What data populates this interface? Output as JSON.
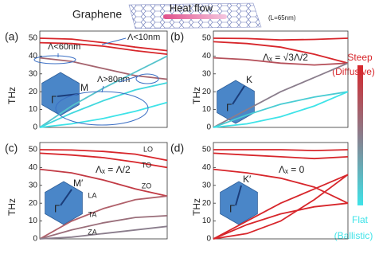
{
  "header": {
    "material": "Graphene",
    "flow": "Heat flow",
    "length": "(L=65nm)"
  },
  "colorbar": {
    "top": "Steep",
    "top_note": "(Diffusive)",
    "bottom": "Flat",
    "bottom_note": "(Ballistic)",
    "colors": [
      "#d7262b",
      "#8a7d8c",
      "#3ee3e8"
    ]
  },
  "chart_data": [
    {
      "type": "line",
      "panel": "(a)",
      "ylabel": "THz",
      "xlim": [
        0,
        1
      ],
      "ylim": [
        0,
        54
      ],
      "yticks": [
        0,
        10,
        20,
        30,
        40,
        50
      ],
      "x": [
        0,
        0.25,
        0.5,
        0.75,
        1
      ],
      "inset": {
        "start": "Γ",
        "end": "M"
      },
      "annotations": [
        "Λ<60nm",
        "Λ<10nm",
        "Λ>80nm"
      ],
      "series": [
        {
          "color": "#d7262b",
          "values": [
            50,
            49.5,
            47.5,
            45,
            43
          ]
        },
        {
          "color": "#d7262b",
          "values": [
            47.5,
            47,
            45.5,
            43,
            41
          ]
        },
        {
          "color": "#a5646e",
          "values": [
            39,
            37,
            33,
            29,
            27
          ]
        },
        {
          "color": "#55c3cc",
          "values": [
            0,
            12,
            22,
            31,
            40
          ]
        },
        {
          "color": "#42d8de",
          "values": [
            0,
            8,
            15,
            21,
            25
          ]
        },
        {
          "color": "#3ee3e8",
          "values": [
            0,
            2,
            5,
            9,
            14
          ]
        }
      ]
    },
    {
      "type": "line",
      "panel": "(b)",
      "ylabel": "THz",
      "xlim": [
        0,
        1
      ],
      "ylim": [
        0,
        54
      ],
      "yticks": [
        0,
        10,
        20,
        30,
        40,
        50
      ],
      "x": [
        0,
        0.25,
        0.5,
        0.75,
        1
      ],
      "inset": {
        "start": "Γ",
        "end": "K"
      },
      "annotations": [
        "Λₓ = √3Λ/2"
      ],
      "series": [
        {
          "color": "#d7262b",
          "values": [
            50,
            49.8,
            49,
            49.3,
            50
          ]
        },
        {
          "color": "#d7262b",
          "values": [
            48,
            47,
            45,
            41,
            36
          ]
        },
        {
          "color": "#b5505a",
          "values": [
            39,
            38,
            36,
            35,
            36
          ]
        },
        {
          "color": "#8a7d8c",
          "values": [
            0,
            10,
            20,
            28,
            36
          ]
        },
        {
          "color": "#49ccd3",
          "values": [
            0,
            7,
            13,
            17,
            20
          ]
        },
        {
          "color": "#3ee3e8",
          "values": [
            0,
            2,
            6,
            12,
            20
          ]
        }
      ]
    },
    {
      "type": "line",
      "panel": "(c)",
      "ylabel": "THz",
      "xlim": [
        0,
        1
      ],
      "ylim": [
        0,
        54
      ],
      "yticks": [
        0,
        10,
        20,
        30,
        40,
        50
      ],
      "x": [
        0,
        0.25,
        0.5,
        0.75,
        1
      ],
      "inset": {
        "start": "Γ",
        "end": "M′"
      },
      "annotations": [
        "Λₓ = Λ/2"
      ],
      "series": [
        {
          "name": "LO",
          "color": "#d7262b",
          "values": [
            50,
            49.8,
            49,
            47.5,
            44
          ]
        },
        {
          "name": "TO",
          "color": "#d7262b",
          "values": [
            48,
            47,
            45.5,
            43,
            40
          ]
        },
        {
          "name": "ZO",
          "color": "#c23a44",
          "values": [
            39,
            37,
            33,
            28,
            24
          ]
        },
        {
          "name": "LA",
          "color": "#b0606a",
          "values": [
            0,
            10,
            17,
            22,
            24
          ]
        },
        {
          "name": "TA",
          "color": "#9a6e7a",
          "values": [
            0,
            5,
            9,
            12,
            13
          ]
        },
        {
          "name": "ZA",
          "color": "#8a7d8c",
          "values": [
            0,
            1,
            3,
            5,
            7
          ]
        }
      ]
    },
    {
      "type": "line",
      "panel": "(d)",
      "ylabel": "THz",
      "xlim": [
        0,
        1
      ],
      "ylim": [
        0,
        54
      ],
      "yticks": [
        0,
        10,
        20,
        30,
        40,
        50
      ],
      "x": [
        0,
        0.25,
        0.5,
        0.75,
        1
      ],
      "inset": {
        "start": "Γ",
        "end": "K′"
      },
      "annotations": [
        "Λₓ = 0"
      ],
      "series": [
        {
          "color": "#d7262b",
          "values": [
            50,
            50,
            50,
            49.5,
            50
          ]
        },
        {
          "color": "#d7262b",
          "values": [
            48,
            47,
            46,
            45,
            46
          ]
        },
        {
          "color": "#d7262b",
          "values": [
            39,
            37,
            34,
            29,
            20
          ]
        },
        {
          "color": "#d7262b",
          "values": [
            0,
            10,
            20,
            28,
            36
          ]
        },
        {
          "color": "#d7262b",
          "values": [
            0,
            8,
            14,
            18,
            20
          ]
        },
        {
          "color": "#d7262b",
          "values": [
            0,
            3,
            10,
            22,
            36
          ]
        }
      ]
    }
  ]
}
